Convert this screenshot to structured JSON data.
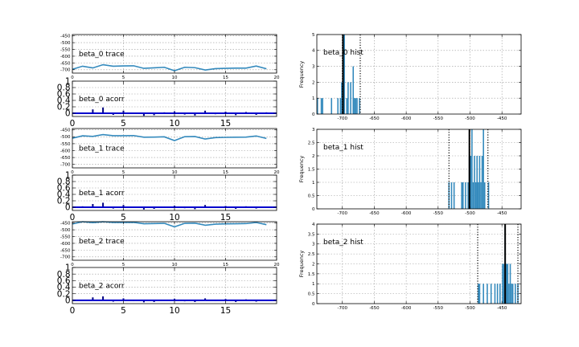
{
  "chart_data": [
    {
      "type": "line",
      "title": "beta_0 trace",
      "x": [
        0,
        1,
        2,
        3,
        4,
        5,
        6,
        7,
        8,
        9,
        10,
        11,
        12,
        13,
        14,
        15,
        16,
        17,
        18,
        19
      ],
      "values": [
        -697,
        -674,
        -687,
        -663,
        -674,
        -672,
        -671,
        -690,
        -686,
        -682,
        -707,
        -682,
        -685,
        -702,
        -692,
        -690,
        -688,
        -688,
        -673,
        -693
      ],
      "xlim": [
        0,
        20
      ],
      "ylim": [
        -725,
        -440
      ],
      "xticks": [
        0,
        5,
        10,
        15,
        20
      ],
      "yticks": [
        -450,
        -500,
        -550,
        -600,
        -650,
        -700
      ],
      "grid": true,
      "color": "#348abd"
    },
    {
      "type": "bar",
      "title": "beta_0 acorr",
      "lags": [
        1,
        2,
        3,
        4,
        5,
        6,
        7,
        8,
        9,
        10,
        11,
        12,
        13,
        14,
        15,
        16,
        17,
        18,
        19
      ],
      "values": [
        0.02,
        0.12,
        0.18,
        -0.05,
        0.08,
        -0.02,
        -0.08,
        -0.06,
        0.03,
        0.06,
        -0.04,
        -0.07,
        0.08,
        -0.03,
        0.05,
        -0.06,
        0.04,
        -0.05,
        0.03
      ],
      "xlim": [
        0,
        20
      ],
      "ylim": [
        -0.1,
        1.0
      ],
      "xticks": [
        0,
        5,
        10,
        15
      ],
      "yticks": [
        0.0,
        0.2,
        0.4,
        0.6,
        0.8,
        1.0
      ],
      "grid": true,
      "color": "#000080"
    },
    {
      "type": "line",
      "title": "beta_1 trace",
      "x": [
        0,
        1,
        2,
        3,
        4,
        5,
        6,
        7,
        8,
        9,
        10,
        11,
        12,
        13,
        14,
        15,
        16,
        17,
        18,
        19
      ],
      "values": [
        -510,
        -493,
        -497,
        -484,
        -492,
        -492,
        -491,
        -503,
        -502,
        -500,
        -527,
        -499,
        -498,
        -516,
        -506,
        -504,
        -503,
        -502,
        -494,
        -512
      ],
      "xlim": [
        0,
        20
      ],
      "ylim": [
        -725,
        -440
      ],
      "xticks": [
        0,
        5,
        10,
        15,
        20
      ],
      "yticks": [
        -450,
        -500,
        -550,
        -600,
        -650,
        -700
      ],
      "grid": true,
      "color": "#348abd"
    },
    {
      "type": "bar",
      "title": "beta_1 acorr",
      "lags": [
        1,
        2,
        3,
        4,
        5,
        6,
        7,
        8,
        9,
        10,
        11,
        12,
        13,
        14,
        15,
        16,
        17,
        18,
        19
      ],
      "values": [
        0.03,
        0.1,
        0.14,
        -0.04,
        0.07,
        -0.02,
        -0.07,
        -0.05,
        0.02,
        0.05,
        -0.03,
        -0.06,
        0.07,
        -0.02,
        0.04,
        -0.05,
        0.03,
        -0.04,
        0.02
      ],
      "xlim": [
        0,
        20
      ],
      "ylim": [
        -0.1,
        1.0
      ],
      "xticks": [
        0,
        5,
        10,
        15
      ],
      "yticks": [
        0.0,
        0.2,
        0.4,
        0.6,
        0.8,
        1.0
      ],
      "grid": true,
      "color": "#000080"
    },
    {
      "type": "line",
      "title": "beta_2 trace",
      "x": [
        0,
        1,
        2,
        3,
        4,
        5,
        6,
        7,
        8,
        9,
        10,
        11,
        12,
        13,
        14,
        15,
        16,
        17,
        18,
        19
      ],
      "values": [
        -457,
        -440,
        -447,
        -440,
        -446,
        -446,
        -445,
        -455,
        -454,
        -452,
        -478,
        -452,
        -451,
        -466,
        -458,
        -456,
        -455,
        -454,
        -446,
        -462
      ],
      "xlim": [
        0,
        20
      ],
      "ylim": [
        -725,
        -440
      ],
      "xticks": [
        0,
        5,
        10,
        15,
        20
      ],
      "yticks": [
        -450,
        -500,
        -550,
        -600,
        -650,
        -700
      ],
      "grid": true,
      "color": "#348abd"
    },
    {
      "type": "bar",
      "title": "beta_2 acorr",
      "lags": [
        1,
        2,
        3,
        4,
        5,
        6,
        7,
        8,
        9,
        10,
        11,
        12,
        13,
        14,
        15,
        16,
        17,
        18,
        19
      ],
      "values": [
        0.02,
        0.09,
        0.12,
        -0.04,
        0.06,
        -0.02,
        -0.06,
        -0.05,
        0.02,
        0.05,
        -0.03,
        -0.05,
        0.06,
        -0.02,
        0.04,
        -0.05,
        0.03,
        -0.04,
        0.02
      ],
      "xlim": [
        0,
        20
      ],
      "ylim": [
        -0.1,
        1.0
      ],
      "xticks": [
        0,
        5,
        10,
        15
      ],
      "yticks": [
        0.0,
        0.2,
        0.4,
        0.6,
        0.8,
        1.0
      ],
      "grid": true,
      "color": "#000080"
    },
    {
      "type": "bar",
      "title": "beta_0 hist",
      "ylabel": "Frequency",
      "bins": [
        -740,
        -738,
        -736,
        -734,
        -732,
        -730,
        -728,
        -726,
        -724,
        -722,
        -720,
        -718,
        -716,
        -714,
        -712,
        -710,
        -708,
        -706,
        -704,
        -702,
        -700,
        -698,
        -696,
        -694,
        -692,
        -690,
        -688,
        -686,
        -684,
        -682,
        -680,
        -678,
        -676,
        -674,
        -672,
        -670
      ],
      "counts": [
        1,
        0,
        0,
        1,
        1,
        0,
        0,
        0,
        0,
        0,
        0,
        1,
        0,
        0,
        0,
        0,
        1,
        0,
        1,
        2,
        4,
        5,
        0,
        1,
        2,
        0,
        2,
        0,
        3,
        1,
        1,
        1,
        0,
        1,
        0,
        0
      ],
      "mean": -699,
      "ci": [
        -700,
        -672
      ],
      "xlim": [
        -740,
        -420
      ],
      "ylim": [
        0,
        5
      ],
      "xticks": [
        -700,
        -650,
        -600,
        -550,
        -500,
        -450
      ],
      "yticks": [
        0,
        1,
        2,
        3,
        4,
        5
      ],
      "grid": true,
      "color": "#348abd"
    },
    {
      "type": "bar",
      "title": "beta_1 hist",
      "ylabel": "Frequency",
      "bins": [
        -534,
        -532,
        -530,
        -528,
        -526,
        -524,
        -522,
        -520,
        -518,
        -516,
        -514,
        -512,
        -510,
        -508,
        -506,
        -504,
        -502,
        -500,
        -498,
        -496,
        -494,
        -492,
        -490,
        -488,
        -486,
        -484,
        -482,
        -480,
        -478,
        -476,
        -474,
        -472,
        -470
      ],
      "counts": [
        1,
        0,
        1,
        0,
        1,
        0,
        0,
        0,
        0,
        0,
        1,
        1,
        0,
        1,
        0,
        1,
        2,
        2,
        3,
        1,
        2,
        1,
        2,
        1,
        2,
        1,
        2,
        3,
        1,
        0,
        0,
        1,
        0
      ],
      "mean": -501,
      "ci": [
        -533,
        -472
      ],
      "xlim": [
        -740,
        -420
      ],
      "ylim": [
        0,
        3.0
      ],
      "xticks": [
        -700,
        -650,
        -600,
        -550,
        -500,
        -450
      ],
      "yticks": [
        0.0,
        0.5,
        1.0,
        1.5,
        2.0,
        2.5,
        3.0
      ],
      "grid": true,
      "color": "#348abd"
    },
    {
      "type": "bar",
      "title": "beta_2 hist",
      "ylabel": "Frequency",
      "bins": [
        -488,
        -486,
        -484,
        -482,
        -480,
        -478,
        -476,
        -474,
        -472,
        -470,
        -468,
        -466,
        -464,
        -462,
        -460,
        -458,
        -456,
        -454,
        -452,
        -450,
        -448,
        -446,
        -444,
        -442,
        -440,
        -438,
        -436,
        -434,
        -432,
        -430,
        -428,
        -426,
        -424,
        -422
      ],
      "counts": [
        1,
        1,
        0,
        0,
        1,
        0,
        0,
        1,
        0,
        0,
        1,
        0,
        0,
        1,
        0,
        1,
        0,
        1,
        0,
        2,
        2,
        4,
        2,
        2,
        1,
        2,
        1,
        1,
        0,
        1,
        0,
        1,
        0,
        0
      ],
      "mean": -445,
      "ci": [
        -488,
        -425
      ],
      "xlim": [
        -740,
        -420
      ],
      "ylim": [
        0,
        4.0
      ],
      "xticks": [
        -700,
        -650,
        -600,
        -550,
        -500,
        -450
      ],
      "yticks": [
        0.0,
        0.5,
        1.0,
        1.5,
        2.0,
        2.5,
        3.0,
        3.5,
        4.0
      ],
      "grid": true,
      "color": "#348abd"
    }
  ]
}
